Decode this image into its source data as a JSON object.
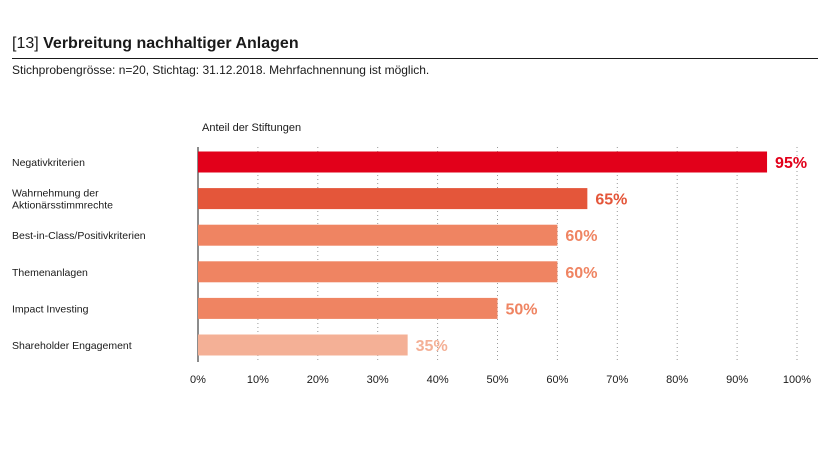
{
  "header": {
    "number": "[13]",
    "title": "Verbreitung nachhaltiger Anlagen",
    "subtitle": "Stichprobengrösse: n=20, Stichtag: 31.12.2018. Mehrfachnennung ist möglich."
  },
  "chart_data": {
    "type": "bar",
    "orientation": "horizontal",
    "axis_title": "Anteil der Stiftungen",
    "categories": [
      [
        "Negativkriterien"
      ],
      [
        "Wahrnehmung der",
        "Aktionärsstimmrechte"
      ],
      [
        "Best-in-Class/Positivkriterien"
      ],
      [
        "Themenanlagen"
      ],
      [
        "Impact Investing"
      ],
      [
        "Shareholder Engagement"
      ]
    ],
    "values": [
      95,
      65,
      60,
      60,
      50,
      35
    ],
    "value_labels": [
      "95%",
      "65%",
      "60%",
      "60%",
      "50%",
      "35%"
    ],
    "bar_colors": [
      "#e2001a",
      "#e4563a",
      "#ef8462",
      "#ef8462",
      "#ef8462",
      "#f4b096"
    ],
    "xlim": [
      0,
      100
    ],
    "xticks": [
      0,
      10,
      20,
      30,
      40,
      50,
      60,
      70,
      80,
      90,
      100
    ],
    "xtick_labels": [
      "0%",
      "10%",
      "20%",
      "30%",
      "40%",
      "50%",
      "60%",
      "70%",
      "80%",
      "90%",
      "100%"
    ],
    "grid": "vertical dotted"
  }
}
